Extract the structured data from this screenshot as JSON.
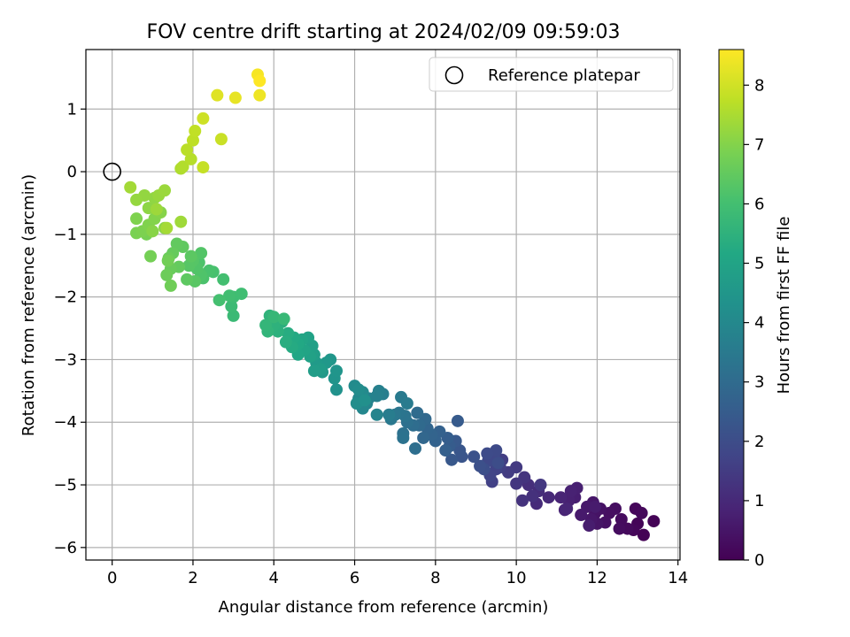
{
  "chart_data": {
    "type": "scatter",
    "title": "FOV centre drift starting at 2024/02/09 09:59:03",
    "xlabel": "Angular distance from reference (arcmin)",
    "ylabel": "Rotation from reference (arcmin)",
    "xlim": [
      -0.65,
      14.05
    ],
    "ylim": [
      -6.2,
      1.95
    ],
    "xticks": [
      0,
      2,
      4,
      6,
      8,
      10,
      12,
      14
    ],
    "yticks": [
      -6,
      -5,
      -4,
      -3,
      -2,
      -1,
      0,
      1
    ],
    "grid": true,
    "legend": {
      "position": "top-right",
      "entries": [
        "Reference platepar"
      ]
    },
    "reference_point": {
      "x": 0,
      "y": 0,
      "label": "Reference platepar"
    },
    "colorbar": {
      "label": "Hours from first FF file",
      "colormap": "viridis",
      "range": [
        0,
        8.6
      ],
      "ticks": [
        0,
        1,
        2,
        3,
        4,
        5,
        6,
        7,
        8
      ]
    },
    "points": [
      [
        13.15,
        -5.8,
        0.02
      ],
      [
        13.4,
        -5.58,
        0.05
      ],
      [
        13.0,
        -5.62,
        0.08
      ],
      [
        12.9,
        -5.72,
        0.12
      ],
      [
        12.95,
        -5.38,
        0.15
      ],
      [
        13.1,
        -5.45,
        0.18
      ],
      [
        12.75,
        -5.7,
        0.22
      ],
      [
        12.6,
        -5.55,
        0.25
      ],
      [
        12.55,
        -5.7,
        0.28
      ],
      [
        12.45,
        -5.38,
        0.32
      ],
      [
        12.3,
        -5.45,
        0.35
      ],
      [
        12.2,
        -5.6,
        0.38
      ],
      [
        12.08,
        -5.38,
        0.42
      ],
      [
        11.95,
        -5.45,
        0.45
      ],
      [
        12.0,
        -5.62,
        0.48
      ],
      [
        11.9,
        -5.28,
        0.52
      ],
      [
        11.85,
        -5.55,
        0.55
      ],
      [
        11.75,
        -5.35,
        0.58
      ],
      [
        11.6,
        -5.48,
        0.62
      ],
      [
        11.95,
        -5.35,
        0.65
      ],
      [
        11.8,
        -5.65,
        0.68
      ],
      [
        11.45,
        -5.2,
        0.72
      ],
      [
        11.5,
        -5.05,
        0.75
      ],
      [
        11.3,
        -5.25,
        0.78
      ],
      [
        11.35,
        -5.1,
        0.82
      ],
      [
        11.2,
        -5.4,
        0.85
      ],
      [
        11.1,
        -5.2,
        0.88
      ],
      [
        11.25,
        -5.38,
        0.92
      ],
      [
        10.8,
        -5.2,
        1.0
      ],
      [
        10.5,
        -5.3,
        1.05
      ],
      [
        10.55,
        -5.1,
        1.1
      ],
      [
        10.3,
        -5.0,
        1.15
      ],
      [
        10.4,
        -5.18,
        1.2
      ],
      [
        10.15,
        -5.25,
        1.25
      ],
      [
        10.2,
        -4.88,
        1.3
      ],
      [
        10.0,
        -4.98,
        1.35
      ],
      [
        10.6,
        -5.0,
        1.4
      ],
      [
        10.0,
        -4.72,
        1.45
      ],
      [
        9.8,
        -4.8,
        1.5
      ],
      [
        9.65,
        -4.6,
        1.55
      ],
      [
        9.6,
        -4.72,
        1.6
      ],
      [
        9.4,
        -4.95,
        1.65
      ],
      [
        9.5,
        -4.75,
        1.7
      ],
      [
        9.35,
        -4.85,
        1.75
      ],
      [
        9.45,
        -4.55,
        1.8
      ],
      [
        9.3,
        -4.62,
        1.85
      ],
      [
        9.5,
        -4.45,
        1.9
      ],
      [
        9.28,
        -4.5,
        1.95
      ],
      [
        9.55,
        -4.65,
        2.0
      ],
      [
        9.2,
        -4.75,
        2.05
      ],
      [
        9.1,
        -4.7,
        2.1
      ],
      [
        8.95,
        -4.55,
        2.15
      ],
      [
        8.65,
        -4.55,
        2.25
      ],
      [
        8.6,
        -4.45,
        2.3
      ],
      [
        8.4,
        -4.6,
        2.35
      ],
      [
        8.5,
        -4.3,
        2.4
      ],
      [
        8.55,
        -3.98,
        2.45
      ],
      [
        8.35,
        -4.38,
        2.5
      ],
      [
        8.3,
        -4.25,
        2.55
      ],
      [
        8.25,
        -4.45,
        2.6
      ],
      [
        8.1,
        -4.15,
        2.65
      ],
      [
        8.0,
        -4.3,
        2.7
      ],
      [
        7.9,
        -4.2,
        2.75
      ],
      [
        7.8,
        -4.1,
        2.8
      ],
      [
        7.7,
        -4.25,
        2.85
      ],
      [
        7.75,
        -3.95,
        2.9
      ],
      [
        7.6,
        -4.05,
        2.95
      ],
      [
        7.55,
        -3.85,
        3.0
      ],
      [
        7.45,
        -4.05,
        3.05
      ],
      [
        7.5,
        -4.42,
        3.1
      ],
      [
        7.3,
        -4.0,
        3.15
      ],
      [
        7.2,
        -4.18,
        3.2
      ],
      [
        7.2,
        -4.25,
        3.25
      ],
      [
        7.25,
        -3.9,
        3.3
      ],
      [
        7.1,
        -3.85,
        3.35
      ],
      [
        7.0,
        -3.88,
        3.4
      ],
      [
        6.9,
        -3.95,
        3.45
      ],
      [
        7.15,
        -3.6,
        3.5
      ],
      [
        7.3,
        -3.7,
        3.55
      ],
      [
        6.85,
        -3.88,
        3.6
      ],
      [
        6.7,
        -3.55,
        3.65
      ],
      [
        6.6,
        -3.5,
        3.7
      ],
      [
        6.55,
        -3.58,
        3.75
      ],
      [
        6.35,
        -3.62,
        3.8
      ],
      [
        6.55,
        -3.88,
        3.85
      ],
      [
        6.3,
        -3.7,
        3.9
      ],
      [
        6.2,
        -3.78,
        3.95
      ],
      [
        6.1,
        -3.62,
        4.0
      ],
      [
        6.2,
        -3.52,
        4.05
      ],
      [
        6.0,
        -3.42,
        4.1
      ],
      [
        6.1,
        -3.48,
        4.15
      ],
      [
        6.05,
        -3.7,
        4.2
      ],
      [
        6.25,
        -3.65,
        4.25
      ],
      [
        5.55,
        -3.48,
        4.35
      ],
      [
        5.5,
        -3.3,
        4.4
      ],
      [
        5.55,
        -3.18,
        4.45
      ],
      [
        5.4,
        -3.0,
        4.5
      ],
      [
        5.3,
        -3.05,
        4.55
      ],
      [
        5.2,
        -3.2,
        4.6
      ],
      [
        5.05,
        -3.05,
        4.65
      ],
      [
        5.15,
        -3.15,
        4.7
      ],
      [
        5.0,
        -3.18,
        4.75
      ],
      [
        5.0,
        -2.92,
        4.8
      ],
      [
        4.95,
        -2.78,
        4.85
      ],
      [
        4.9,
        -2.95,
        4.9
      ],
      [
        4.85,
        -2.65,
        4.95
      ],
      [
        4.75,
        -2.85,
        5.0
      ],
      [
        4.7,
        -2.68,
        5.05
      ],
      [
        4.6,
        -2.92,
        5.1
      ],
      [
        4.6,
        -2.75,
        5.15
      ],
      [
        4.5,
        -2.65,
        5.2
      ],
      [
        4.45,
        -2.8,
        5.25
      ],
      [
        4.35,
        -2.58,
        5.3
      ],
      [
        4.3,
        -2.72,
        5.35
      ],
      [
        4.2,
        -2.4,
        5.4
      ],
      [
        4.1,
        -2.55,
        5.45
      ],
      [
        4.0,
        -2.45,
        5.5
      ],
      [
        3.9,
        -2.3,
        5.55
      ],
      [
        3.85,
        -2.55,
        5.6
      ],
      [
        3.8,
        -2.45,
        5.65
      ],
      [
        4.0,
        -2.32,
        5.7
      ],
      [
        4.25,
        -2.35,
        5.75
      ],
      [
        3.0,
        -2.3,
        5.8
      ],
      [
        2.95,
        -2.15,
        5.85
      ],
      [
        3.0,
        -2.0,
        5.9
      ],
      [
        3.2,
        -1.95,
        5.93
      ],
      [
        2.9,
        -1.98,
        5.96
      ],
      [
        2.75,
        -1.72,
        6.0
      ],
      [
        2.65,
        -2.05,
        6.03
      ],
      [
        2.5,
        -1.6,
        6.06
      ],
      [
        2.4,
        -1.58,
        6.1
      ],
      [
        2.25,
        -1.7,
        6.13
      ],
      [
        2.15,
        -1.45,
        6.16
      ],
      [
        2.2,
        -1.65,
        6.2
      ],
      [
        2.1,
        -1.55,
        6.23
      ],
      [
        2.2,
        -1.3,
        6.26
      ],
      [
        2.0,
        -1.42,
        6.3
      ],
      [
        1.9,
        -1.5,
        6.33
      ],
      [
        2.05,
        -1.75,
        6.36
      ],
      [
        1.95,
        -1.35,
        6.4
      ],
      [
        1.85,
        -1.72,
        6.43
      ],
      [
        1.75,
        -1.2,
        6.46
      ],
      [
        1.6,
        -1.15,
        6.5
      ],
      [
        1.65,
        -1.52,
        6.53
      ],
      [
        1.5,
        -1.3,
        6.56
      ],
      [
        1.45,
        -1.55,
        6.6
      ],
      [
        1.4,
        -1.38,
        6.63
      ],
      [
        1.35,
        -1.65,
        6.66
      ],
      [
        1.45,
        -1.82,
        6.7
      ],
      [
        1.38,
        -1.42,
        6.73
      ],
      [
        0.95,
        -1.35,
        6.78
      ],
      [
        0.85,
        -1.0,
        6.82
      ],
      [
        0.6,
        -0.98,
        6.86
      ],
      [
        0.75,
        -0.95,
        6.9
      ],
      [
        0.6,
        -0.75,
        6.93
      ],
      [
        0.9,
        -0.85,
        6.96
      ],
      [
        1.05,
        -0.75,
        7.0
      ],
      [
        1.2,
        -0.65,
        7.03
      ],
      [
        1.0,
        -0.95,
        7.06
      ],
      [
        1.3,
        -0.9,
        7.1
      ],
      [
        0.9,
        -0.58,
        7.13
      ],
      [
        1.05,
        -0.42,
        7.16
      ],
      [
        0.8,
        -0.38,
        7.2
      ],
      [
        0.6,
        -0.45,
        7.23
      ],
      [
        1.15,
        -0.38,
        7.26
      ],
      [
        1.3,
        -0.3,
        7.3
      ],
      [
        1.1,
        -0.6,
        7.33
      ],
      [
        1.7,
        -0.8,
        7.36
      ],
      [
        0.45,
        -0.25,
        7.4
      ],
      [
        1.35,
        -0.9,
        7.43
      ],
      [
        1.7,
        0.05,
        7.55
      ],
      [
        1.75,
        0.08,
        7.6
      ],
      [
        1.95,
        0.2,
        7.65
      ],
      [
        1.85,
        0.35,
        7.7
      ],
      [
        2.0,
        0.5,
        7.75
      ],
      [
        2.05,
        0.65,
        7.8
      ],
      [
        2.25,
        0.07,
        7.85
      ],
      [
        2.7,
        0.52,
        7.9
      ],
      [
        2.25,
        0.85,
        7.95
      ],
      [
        2.6,
        1.22,
        8.2
      ],
      [
        3.05,
        1.18,
        8.3
      ],
      [
        3.65,
        1.22,
        8.4
      ],
      [
        3.6,
        1.55,
        8.5
      ],
      [
        3.65,
        1.45,
        8.6
      ]
    ]
  }
}
